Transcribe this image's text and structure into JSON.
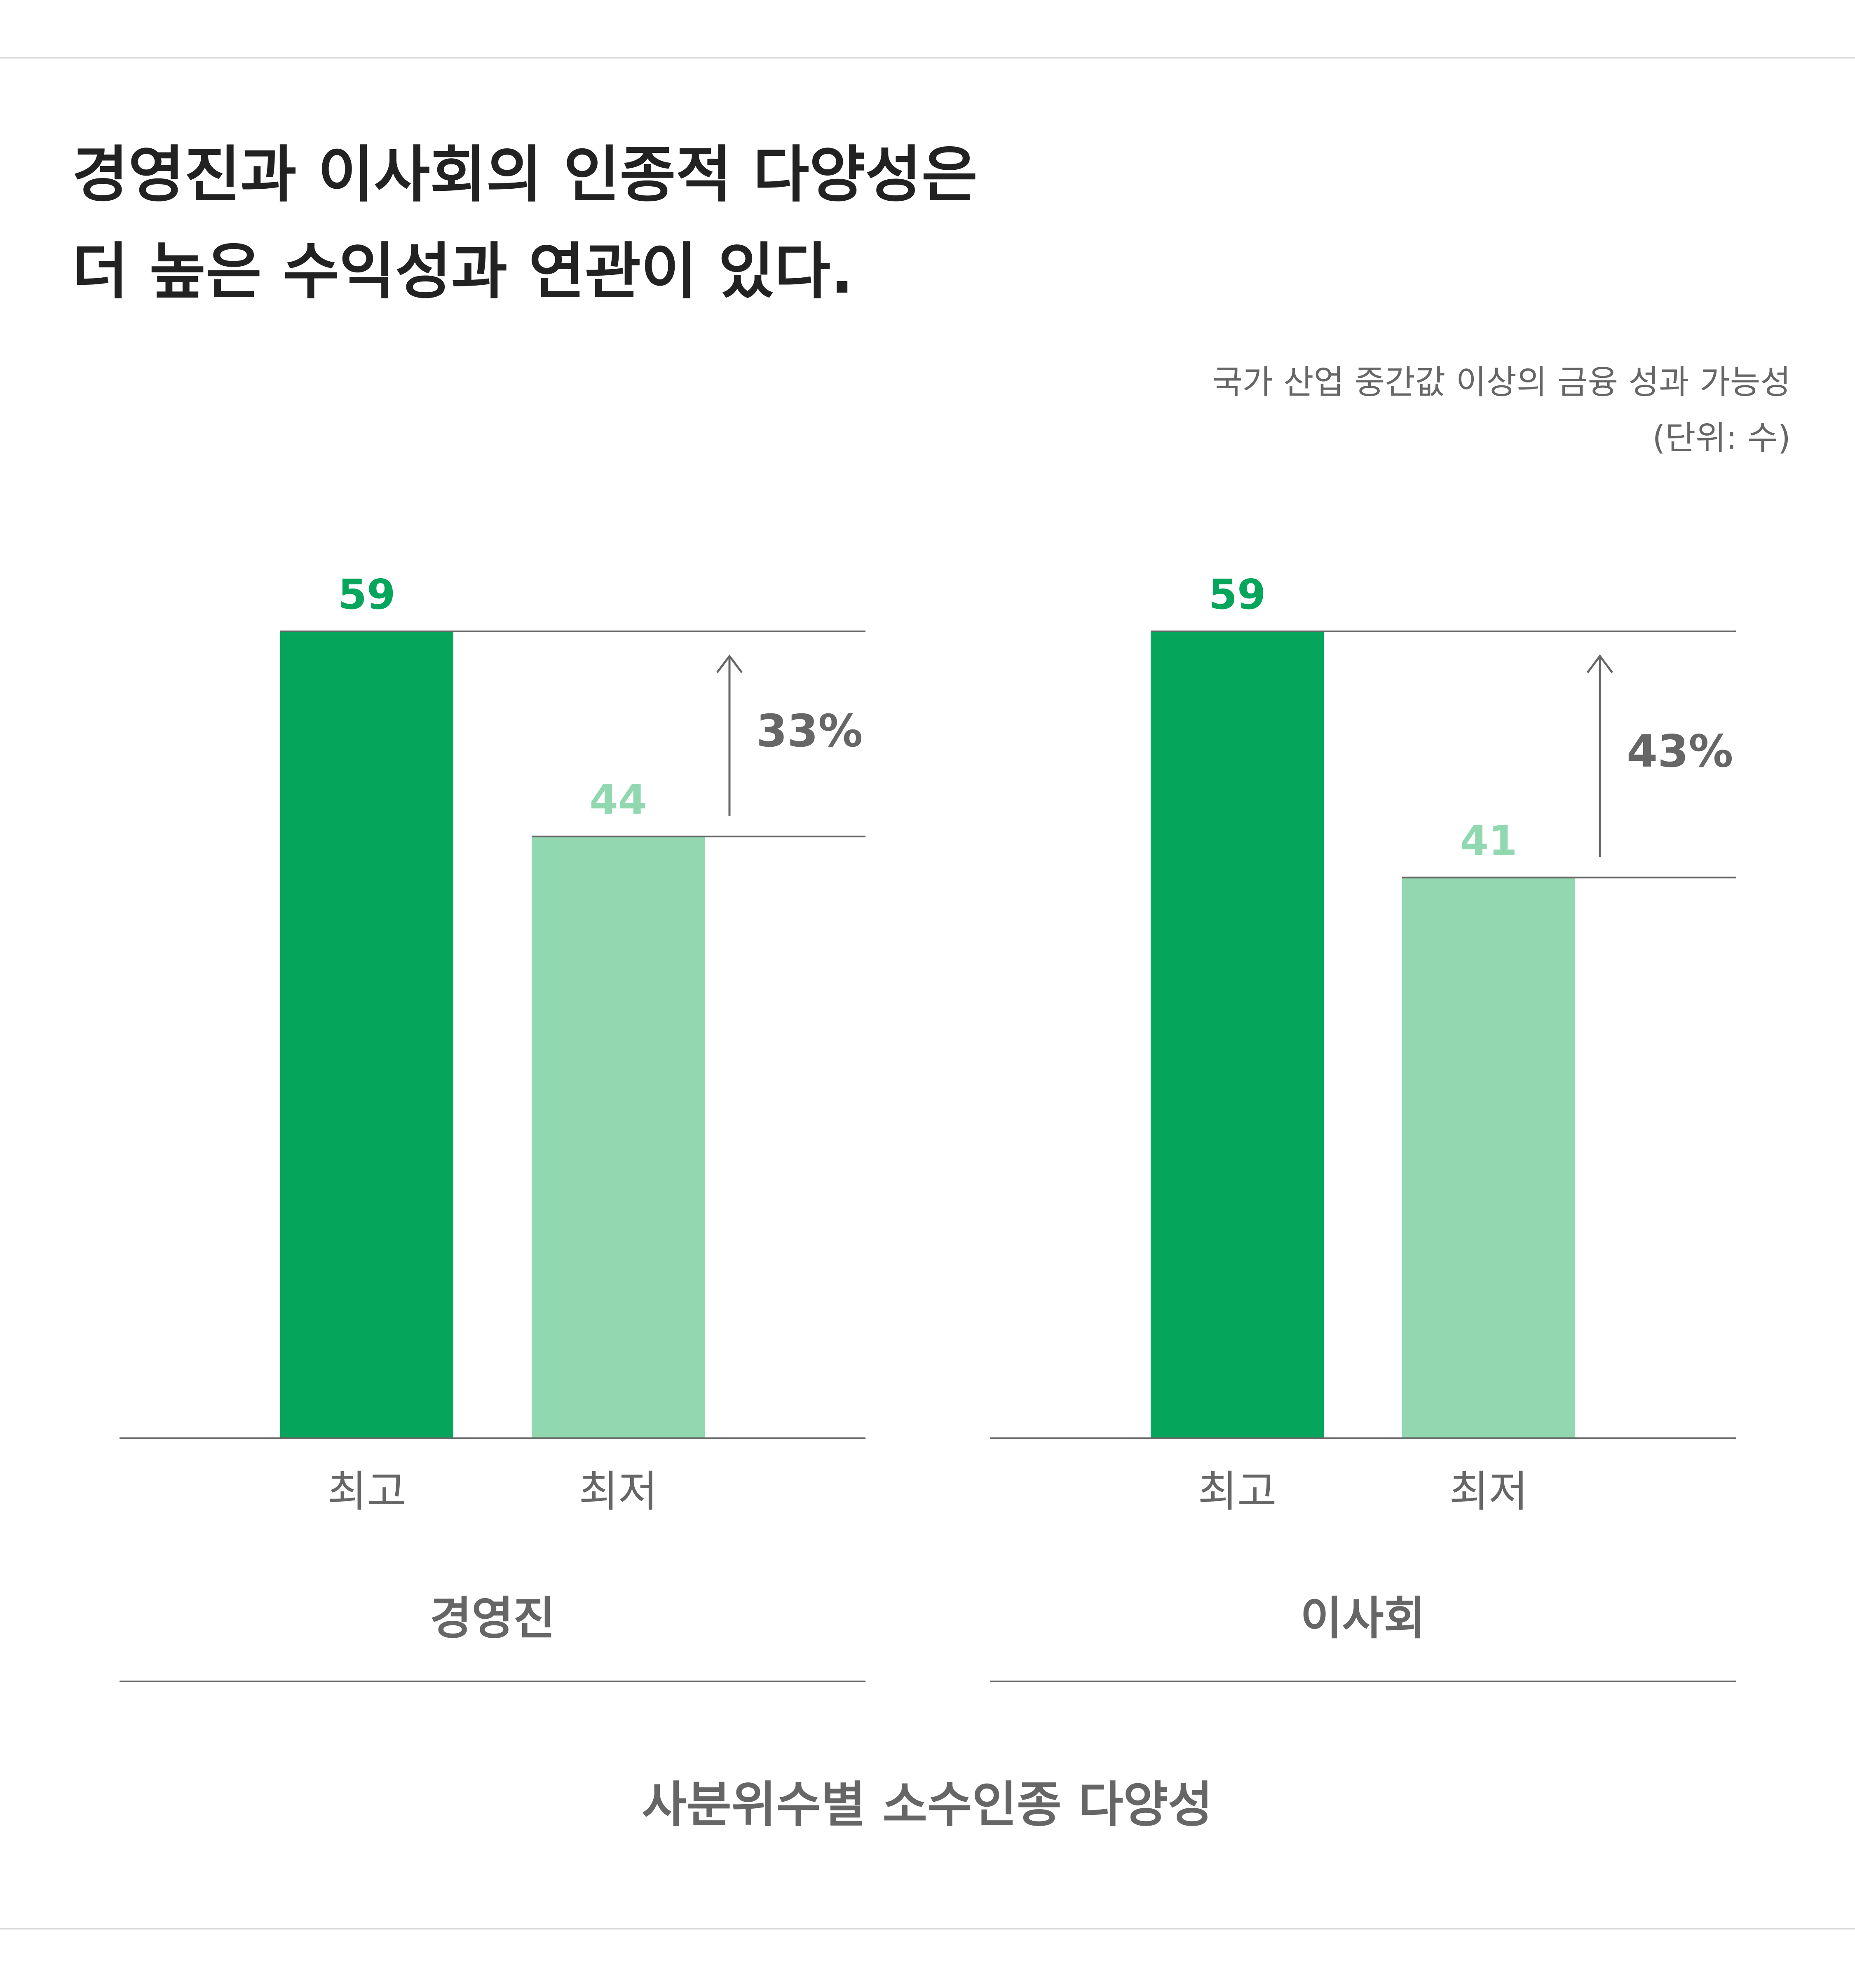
{
  "title_line1": "경영진과 이사회의 인종적 다양성은",
  "title_line2": "더 높은 수익성과 연관이 있다.",
  "note_line1": "국가 산업 중간값 이상의 금융 성과 가능성",
  "note_line2": "(단위: 수)",
  "footer_label": "사분위수별 소수인종 다양성",
  "colors": {
    "top": "#05a65c",
    "bottom": "#91d8b0",
    "text": "#666666",
    "title": "#222222",
    "rule": "#666666",
    "frame": "#d9d9d9"
  },
  "chart_data": [
    {
      "type": "bar",
      "group": "경영진",
      "categories": [
        "최고",
        "최저"
      ],
      "values": [
        59,
        44
      ],
      "difference_label": "33%",
      "ylim": [
        0,
        59
      ]
    },
    {
      "type": "bar",
      "group": "이사회",
      "categories": [
        "최고",
        "최저"
      ],
      "values": [
        59,
        41
      ],
      "difference_label": "43%",
      "ylim": [
        0,
        59
      ]
    }
  ]
}
